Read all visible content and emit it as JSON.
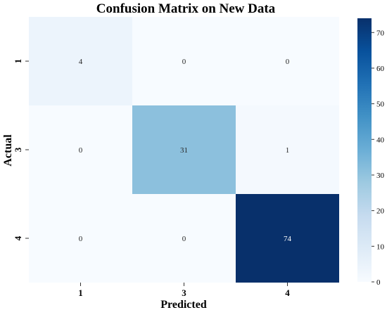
{
  "chart_data": {
    "type": "heatmap",
    "title": "Confusion Matrix on New Data",
    "xlabel": "Predicted",
    "ylabel": "Actual",
    "x_categories": [
      "1",
      "3",
      "4"
    ],
    "y_categories": [
      "1",
      "3",
      "4"
    ],
    "values": [
      [
        4,
        0,
        0
      ],
      [
        0,
        31,
        1
      ],
      [
        0,
        0,
        74
      ]
    ],
    "colorbar": {
      "range": [
        0,
        74
      ],
      "ticks": [
        0,
        10,
        20,
        30,
        40,
        50,
        60,
        70
      ],
      "colormap": "Blues"
    }
  }
}
